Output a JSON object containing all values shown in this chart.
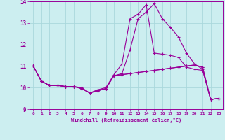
{
  "xlabel": "Windchill (Refroidissement éolien,°C)",
  "xlim": [
    -0.5,
    23.5
  ],
  "ylim": [
    9,
    14
  ],
  "yticks": [
    9,
    10,
    11,
    12,
    13,
    14
  ],
  "xticks": [
    0,
    1,
    2,
    3,
    4,
    5,
    6,
    7,
    8,
    9,
    10,
    11,
    12,
    13,
    14,
    15,
    16,
    17,
    18,
    19,
    20,
    21,
    22,
    23
  ],
  "bg_color": "#cceef0",
  "grid_color": "#aad8dc",
  "line_color": "#990099",
  "lines": [
    [
      11.0,
      10.3,
      10.1,
      10.1,
      10.05,
      10.05,
      10.0,
      9.75,
      9.85,
      9.95,
      10.55,
      10.6,
      10.65,
      10.7,
      10.75,
      10.8,
      10.85,
      10.9,
      10.95,
      11.0,
      11.05,
      10.95,
      9.45,
      9.5
    ],
    [
      11.0,
      10.3,
      10.1,
      10.1,
      10.05,
      10.05,
      9.98,
      9.75,
      9.85,
      9.95,
      10.55,
      10.65,
      11.75,
      13.2,
      13.5,
      13.9,
      13.2,
      12.8,
      12.35,
      11.6,
      11.1,
      10.85,
      9.45,
      9.5
    ],
    [
      11.0,
      10.3,
      10.1,
      10.1,
      10.05,
      10.05,
      9.95,
      9.75,
      9.9,
      10.0,
      10.6,
      11.1,
      13.2,
      13.4,
      13.85,
      11.6,
      11.55,
      11.5,
      11.4,
      10.95,
      10.85,
      10.8,
      9.45,
      9.5
    ],
    [
      11.0,
      10.3,
      10.1,
      10.1,
      10.05,
      10.05,
      9.95,
      9.75,
      9.88,
      9.95,
      10.55,
      10.6,
      10.65,
      10.7,
      10.75,
      10.8,
      10.85,
      10.9,
      10.95,
      11.0,
      11.05,
      10.95,
      9.45,
      9.5
    ]
  ]
}
